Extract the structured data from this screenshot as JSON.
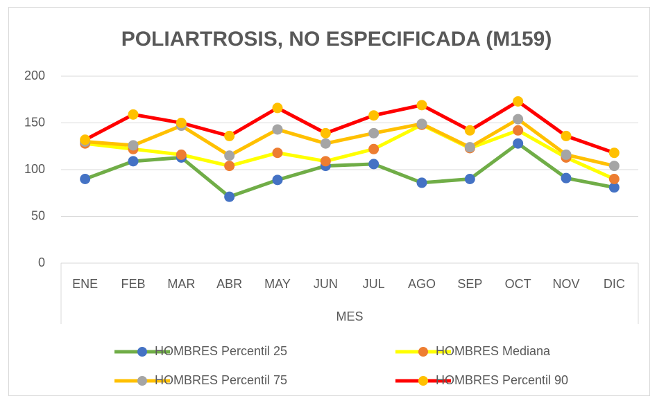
{
  "chart_data": {
    "type": "line",
    "title": "POLIARTROSIS, NO ESPECIFICADA (M159)",
    "xlabel": "MES",
    "categories": [
      "ENE",
      "FEB",
      "MAR",
      "ABR",
      "MAY",
      "JUN",
      "JUL",
      "AGO",
      "SEP",
      "OCT",
      "NOV",
      "DIC"
    ],
    "ylim": [
      0,
      200
    ],
    "yticks": [
      0,
      50,
      100,
      150,
      200
    ],
    "grid": true,
    "legend": "bottom",
    "series": [
      {
        "name": "HOMBRES Percentil 25",
        "color": "#70ad47",
        "marker_color": "#4472c4",
        "values": [
          90,
          109,
          113,
          71,
          89,
          104,
          106,
          86,
          90,
          128,
          91,
          81
        ]
      },
      {
        "name": "HOMBRES Mediana",
        "color": "#ffff00",
        "marker_color": "#ed7d31",
        "values": [
          128,
          122,
          116,
          104,
          118,
          109,
          122,
          148,
          123,
          142,
          113,
          90
        ]
      },
      {
        "name": "HOMBRES Percentil 75",
        "color": "#ffc000",
        "marker_color": "#a5a5a5",
        "values": [
          130,
          126,
          147,
          115,
          143,
          128,
          139,
          149,
          124,
          154,
          116,
          104
        ]
      },
      {
        "name": "HOMBRES Percentil 90",
        "color": "#ff0000",
        "marker_color": "#ffc000",
        "values": [
          132,
          159,
          150,
          136,
          166,
          139,
          158,
          169,
          142,
          173,
          136,
          118
        ]
      }
    ]
  }
}
